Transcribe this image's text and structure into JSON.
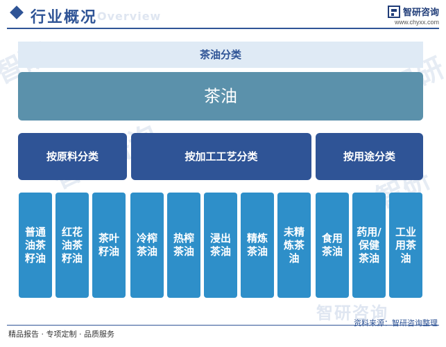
{
  "header": {
    "title": "行业概况",
    "subtitle_en": "Overview",
    "brand_name": "智研咨询",
    "brand_url": "www.chyxx.com",
    "accent": "#2f5496"
  },
  "band_title": "茶油分类",
  "root_label": "茶油",
  "categories": [
    {
      "label": "按原料分类"
    },
    {
      "label": "按加工工艺分类"
    },
    {
      "label": "按用途分类"
    }
  ],
  "items": [
    "普通油茶籽油",
    "红花油茶籽油",
    "茶叶籽油",
    "冷榨茶油",
    "热榨茶油",
    "浸出茶油",
    "精炼茶油",
    "未精炼茶油",
    "食用茶油",
    "药用/保健茶油",
    "工业用茶油"
  ],
  "footer": {
    "left": "精品报告 · 专项定制 · 品质服务",
    "source": "资料来源：智研咨询整理",
    "watermark": "智研咨询"
  },
  "colors": {
    "root": "#5b91ab",
    "category": "#2f5496",
    "item": "#2e8fc9",
    "band": "#dfeaf5"
  }
}
